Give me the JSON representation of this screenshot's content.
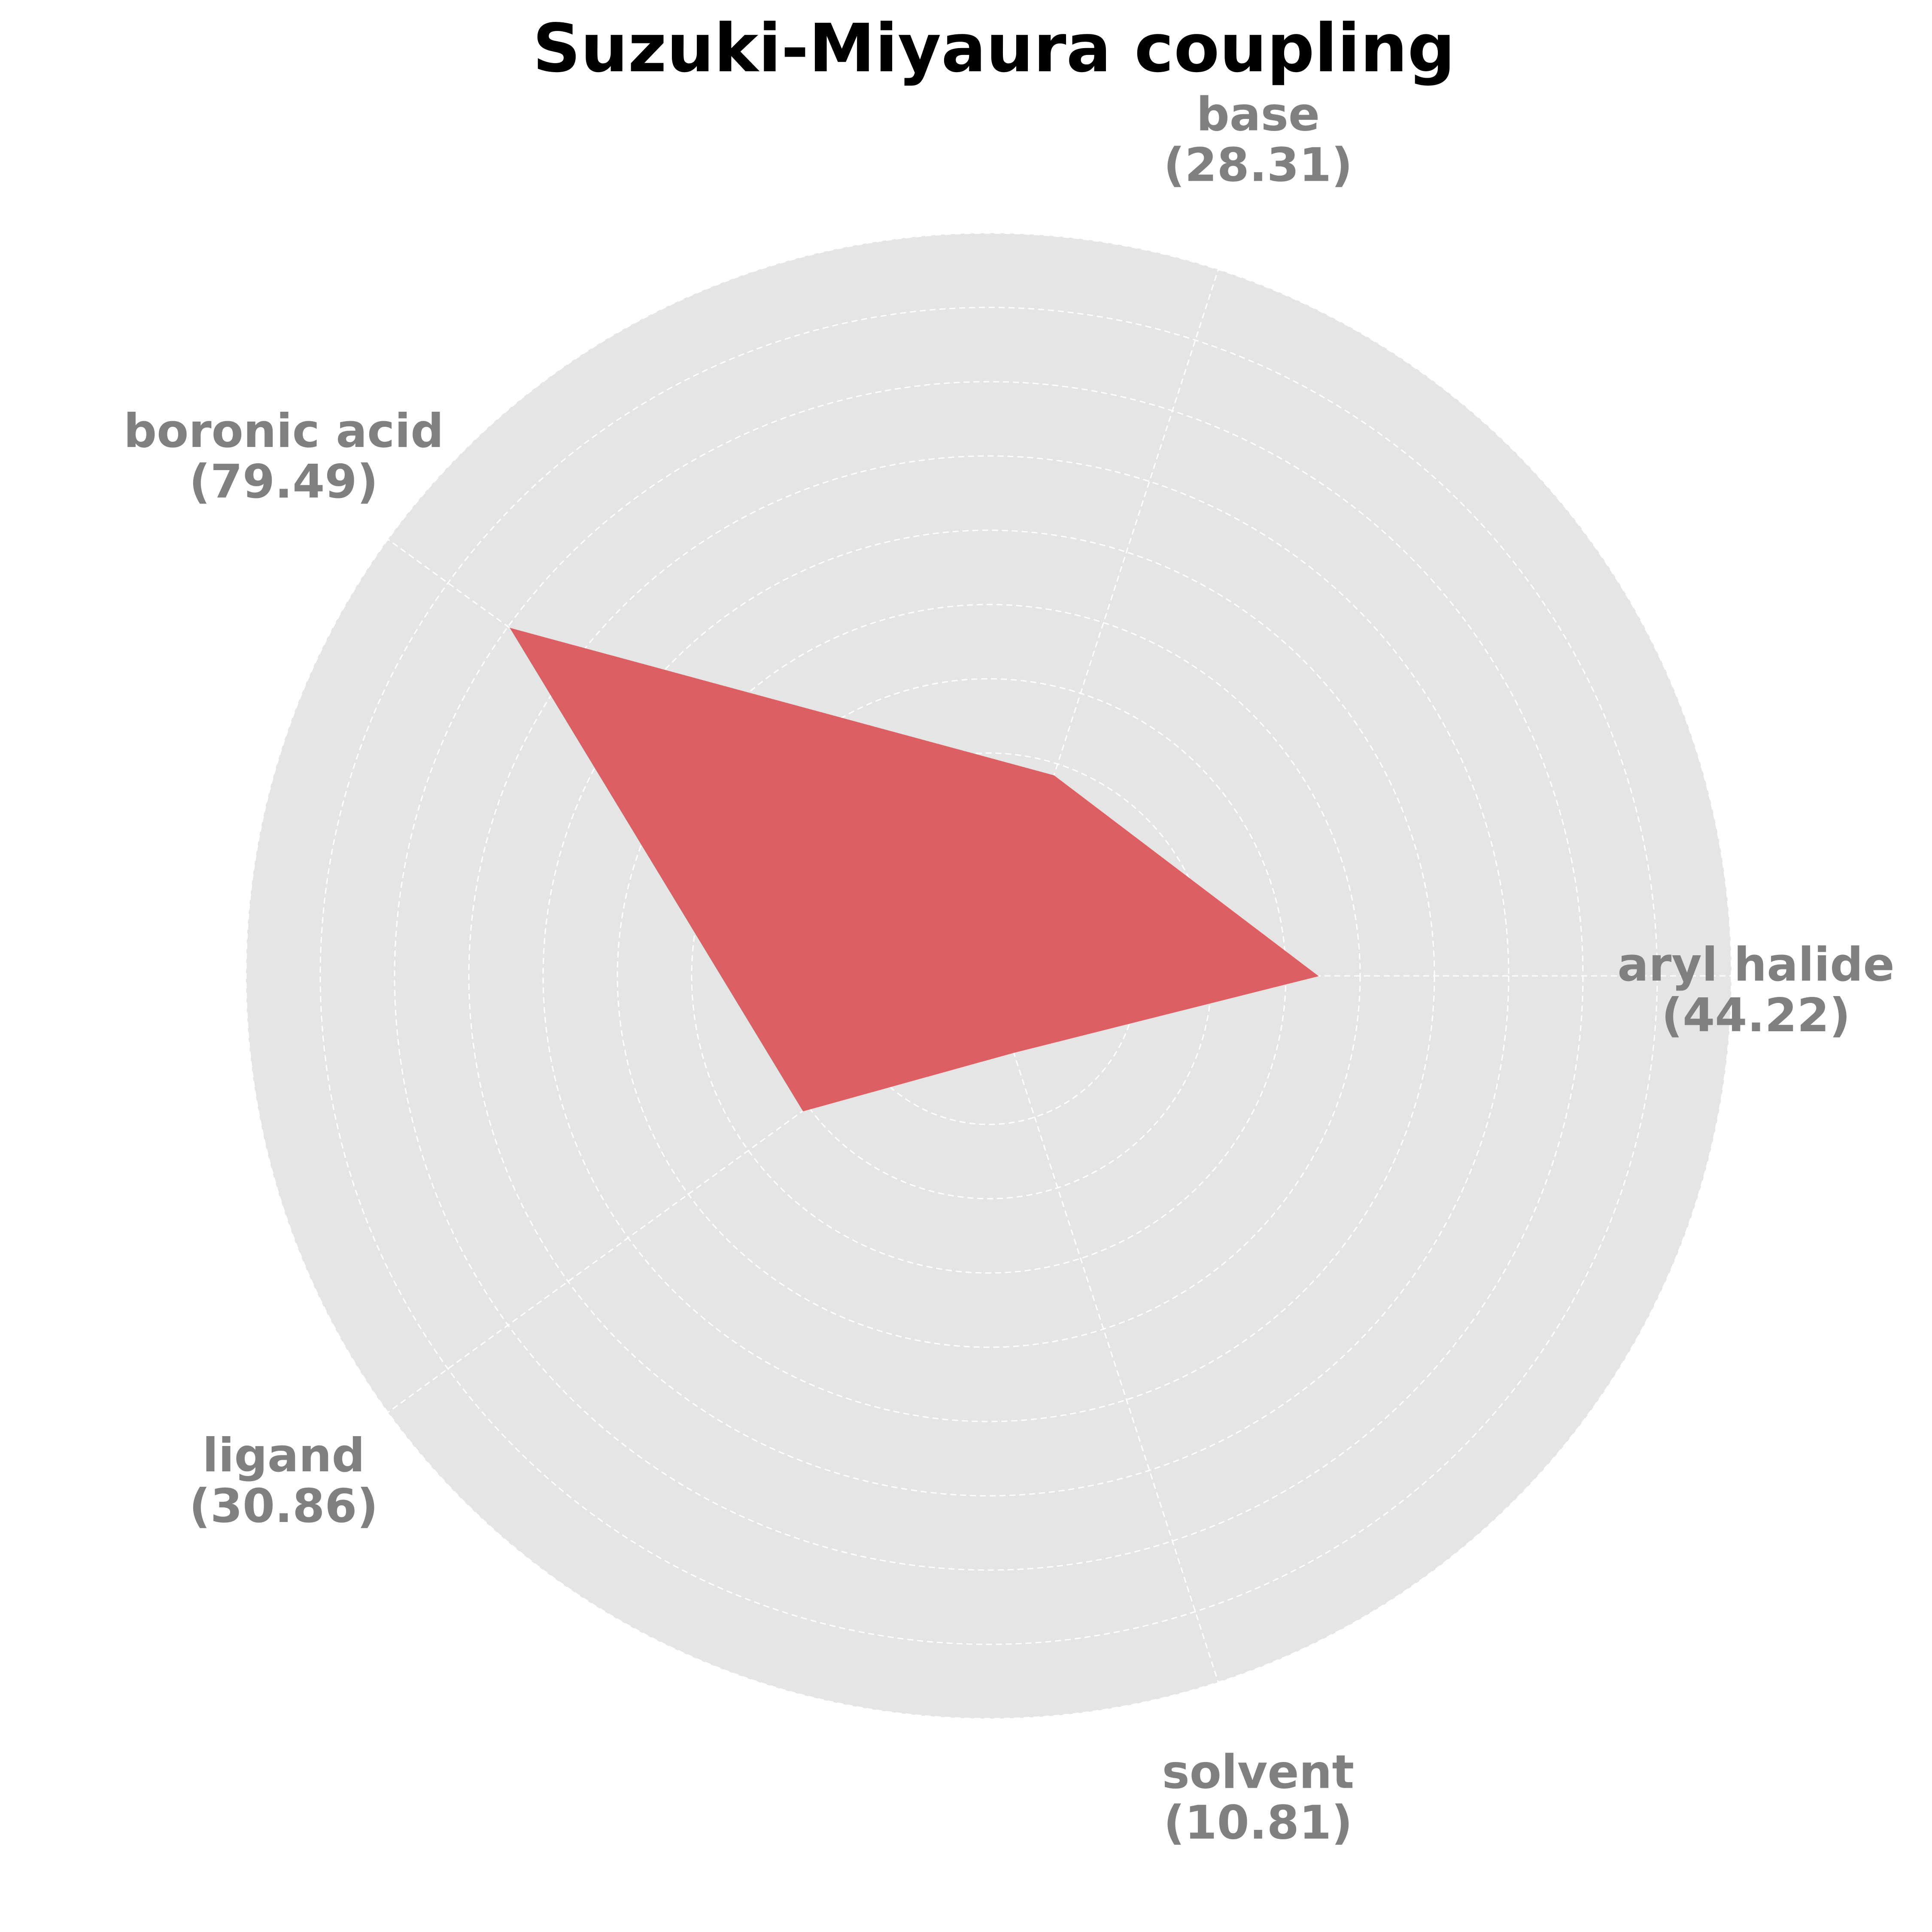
{
  "chart_data": {
    "type": "radar",
    "title": "Suzuki-Miyaura coupling",
    "categories": [
      "aryl halide",
      "base",
      "boronic acid",
      "ligand",
      "solvent"
    ],
    "value_labels": [
      "(44.22)",
      "(28.31)",
      "(79.49)",
      "(30.86)",
      "(10.81)"
    ],
    "values": [
      44.22,
      28.31,
      79.49,
      30.86,
      10.81
    ],
    "rlim": [
      0,
      100
    ],
    "grid": true,
    "ring_step": 10,
    "colors": {
      "fill": "#dc5f63",
      "background": "#e5e5e5",
      "grid": "#ffffff",
      "label": "#808080",
      "title": "#000000"
    }
  }
}
